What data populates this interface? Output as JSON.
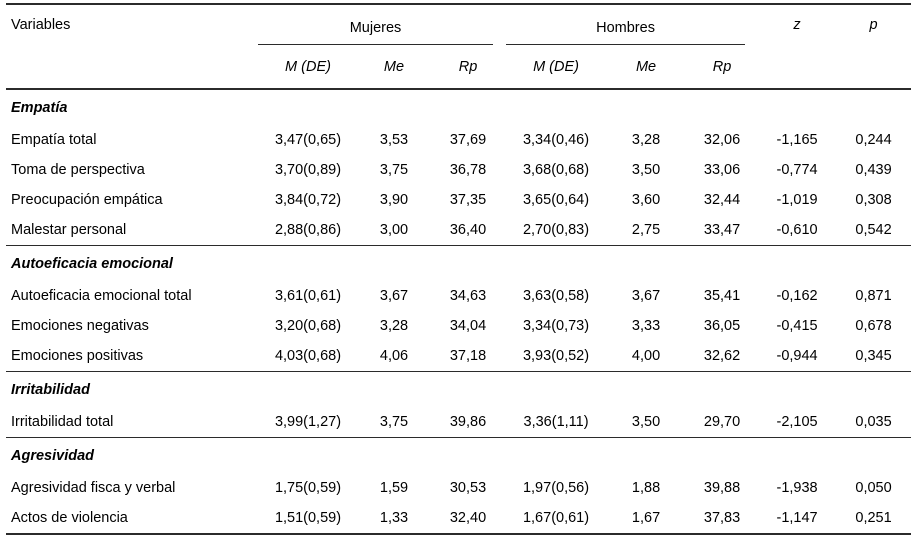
{
  "table": {
    "variables_header": "Variables",
    "groups": [
      "Mujeres",
      "Hombres"
    ],
    "subheaders": [
      "M (DE)",
      "Me",
      "Rp",
      "M (DE)",
      "Me",
      "Rp"
    ],
    "stat_cols": [
      "z",
      "p"
    ],
    "sections": [
      {
        "header": "Empatía",
        "rows": [
          {
            "label": "Empatía total",
            "values": [
              "3,47(0,65)",
              "3,53",
              "37,69",
              "3,34(0,46)",
              "3,28",
              "32,06",
              "-1,165",
              "0,244"
            ]
          },
          {
            "label": "Toma de perspectiva",
            "values": [
              "3,70(0,89)",
              "3,75",
              "36,78",
              "3,68(0,68)",
              "3,50",
              "33,06",
              "-0,774",
              "0,439"
            ]
          },
          {
            "label": "Preocupación empática",
            "values": [
              "3,84(0,72)",
              "3,90",
              "37,35",
              "3,65(0,64)",
              "3,60",
              "32,44",
              "-1,019",
              "0,308"
            ]
          },
          {
            "label": "Malestar personal",
            "values": [
              "2,88(0,86)",
              "3,00",
              "36,40",
              "2,70(0,83)",
              "2,75",
              "33,47",
              "-0,610",
              "0,542"
            ]
          }
        ]
      },
      {
        "header": "Autoeficacia emocional",
        "rows": [
          {
            "label": "Autoeficacia emocional total",
            "values": [
              "3,61(0,61)",
              "3,67",
              "34,63",
              "3,63(0,58)",
              "3,67",
              "35,41",
              "-0,162",
              "0,871"
            ]
          },
          {
            "label": "Emociones negativas",
            "values": [
              "3,20(0,68)",
              "3,28",
              "34,04",
              "3,34(0,73)",
              "3,33",
              "36,05",
              "-0,415",
              "0,678"
            ]
          },
          {
            "label": "Emociones positivas",
            "values": [
              "4,03(0,68)",
              "4,06",
              "37,18",
              "3,93(0,52)",
              "4,00",
              "32,62",
              "-0,944",
              "0,345"
            ]
          }
        ]
      },
      {
        "header": "Irritabilidad",
        "rows": [
          {
            "label": "Irritabilidad total",
            "values": [
              "3,99(1,27)",
              "3,75",
              "39,86",
              "3,36(1,11)",
              "3,50",
              "29,70",
              "-2,105",
              "0,035"
            ]
          }
        ]
      },
      {
        "header": "Agresividad",
        "rows": [
          {
            "label": "Agresividad fisca y verbal",
            "values": [
              "1,75(0,59)",
              "1,59",
              "30,53",
              "1,97(0,56)",
              "1,88",
              "39,88",
              "-1,938",
              "0,050"
            ]
          },
          {
            "label": "Actos de violencia",
            "values": [
              "1,51(0,59)",
              "1,33",
              "32,40",
              "1,67(0,61)",
              "1,67",
              "37,83",
              "-1,147",
              "0,251"
            ]
          }
        ]
      }
    ]
  }
}
